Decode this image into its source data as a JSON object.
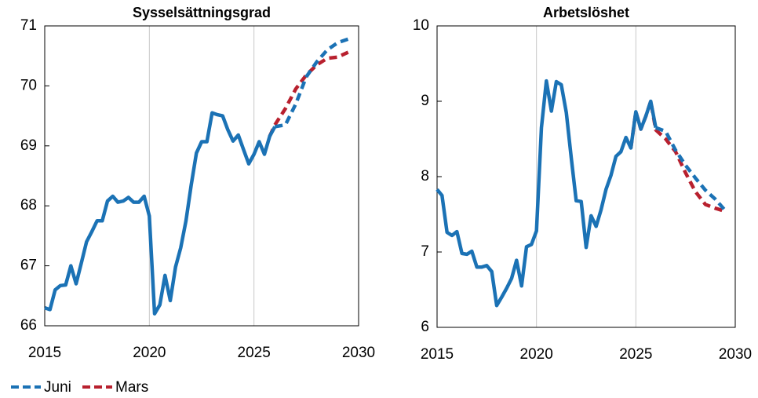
{
  "chart_data": [
    {
      "type": "line",
      "title": "Sysselsättningsgrad",
      "x": [
        2015,
        2015.25,
        2015.5,
        2015.75,
        2016,
        2016.25,
        2016.5,
        2016.75,
        2017,
        2017.25,
        2017.5,
        2017.75,
        2018,
        2018.25,
        2018.5,
        2018.75,
        2019,
        2019.25,
        2019.5,
        2019.75,
        2020,
        2020.25,
        2020.5,
        2020.75,
        2021,
        2021.25,
        2021.5,
        2021.75,
        2022,
        2022.25,
        2022.5,
        2022.75,
        2023,
        2023.25,
        2023.5,
        2023.75,
        2024,
        2024.25,
        2024.5,
        2024.75,
        2025,
        2025.25,
        2025.5,
        2025.75,
        2026,
        2026.5,
        2027,
        2027.5,
        2028,
        2028.5,
        2029,
        2029.5
      ],
      "series": [
        {
          "name": "Juni",
          "color": "#1b72b5",
          "dash_from": 2026,
          "values": [
            66.3,
            66.27,
            66.6,
            66.67,
            66.68,
            67.0,
            66.7,
            67.05,
            67.4,
            67.57,
            67.75,
            67.75,
            68.08,
            68.16,
            68.06,
            68.08,
            68.14,
            68.06,
            68.06,
            68.16,
            67.83,
            66.2,
            66.35,
            66.84,
            66.42,
            66.98,
            67.3,
            67.75,
            68.35,
            68.88,
            69.07,
            69.07,
            69.55,
            69.52,
            69.5,
            69.27,
            69.08,
            69.18,
            68.94,
            68.7,
            68.86,
            69.07,
            68.86,
            69.16,
            69.32,
            69.35,
            69.7,
            70.15,
            70.4,
            70.6,
            70.72,
            70.78
          ]
        },
        {
          "name": "Mars",
          "color": "#b8202e",
          "dash_from": 2025.75,
          "values": [
            null,
            null,
            null,
            null,
            null,
            null,
            null,
            null,
            null,
            null,
            null,
            null,
            null,
            null,
            null,
            null,
            null,
            null,
            null,
            null,
            null,
            null,
            null,
            null,
            null,
            null,
            null,
            null,
            null,
            null,
            null,
            null,
            null,
            null,
            null,
            null,
            null,
            null,
            null,
            null,
            null,
            null,
            null,
            69.16,
            69.35,
            69.62,
            69.95,
            70.18,
            70.35,
            70.46,
            70.48,
            70.56
          ]
        }
      ],
      "xlim": [
        2015,
        2030
      ],
      "xticks": [
        2015,
        2020,
        2025,
        2030
      ],
      "ylim": [
        66,
        71
      ],
      "yticks": [
        66,
        67,
        68,
        69,
        70,
        71
      ],
      "grid": "x"
    },
    {
      "type": "line",
      "title": "Arbetslöshet",
      "x": [
        2015,
        2015.25,
        2015.5,
        2015.75,
        2016,
        2016.25,
        2016.5,
        2016.75,
        2017,
        2017.25,
        2017.5,
        2017.75,
        2018,
        2018.25,
        2018.5,
        2018.75,
        2019,
        2019.25,
        2019.5,
        2019.75,
        2020,
        2020.25,
        2020.5,
        2020.75,
        2021,
        2021.25,
        2021.5,
        2021.75,
        2022,
        2022.25,
        2022.5,
        2022.75,
        2023,
        2023.25,
        2023.5,
        2023.75,
        2024,
        2024.25,
        2024.5,
        2024.75,
        2025,
        2025.25,
        2025.5,
        2025.75,
        2026,
        2026.5,
        2027,
        2027.5,
        2028,
        2028.5,
        2029,
        2029.5
      ],
      "series": [
        {
          "name": "Juni",
          "color": "#1b72b5",
          "dash_from": 2026,
          "values": [
            7.83,
            7.75,
            7.26,
            7.22,
            7.27,
            6.98,
            6.97,
            7.01,
            6.8,
            6.8,
            6.82,
            6.74,
            6.29,
            6.4,
            6.52,
            6.65,
            6.89,
            6.55,
            7.07,
            7.1,
            7.28,
            8.65,
            9.27,
            8.87,
            9.26,
            9.22,
            8.85,
            8.25,
            7.68,
            7.67,
            7.06,
            7.48,
            7.34,
            7.56,
            7.83,
            8.02,
            8.27,
            8.33,
            8.52,
            8.38,
            8.86,
            8.63,
            8.8,
            9.0,
            8.65,
            8.6,
            8.35,
            8.15,
            7.98,
            7.82,
            7.7,
            7.55
          ]
        },
        {
          "name": "Mars",
          "color": "#b8202e",
          "dash_from": 2024.75,
          "values": [
            null,
            null,
            null,
            null,
            null,
            null,
            null,
            null,
            null,
            null,
            null,
            null,
            null,
            null,
            null,
            null,
            null,
            null,
            null,
            null,
            null,
            null,
            null,
            null,
            null,
            null,
            null,
            null,
            null,
            null,
            null,
            null,
            null,
            null,
            null,
            null,
            null,
            null,
            null,
            8.38,
            8.86,
            8.63,
            8.8,
            9.0,
            8.62,
            8.5,
            8.33,
            8.05,
            7.8,
            7.63,
            7.58,
            7.54
          ]
        }
      ],
      "xlim": [
        2015,
        2030
      ],
      "xticks": [
        2015,
        2020,
        2025,
        2030
      ],
      "ylim": [
        6,
        10
      ],
      "yticks": [
        6,
        7,
        8,
        9,
        10
      ],
      "grid": "x"
    }
  ]
}
